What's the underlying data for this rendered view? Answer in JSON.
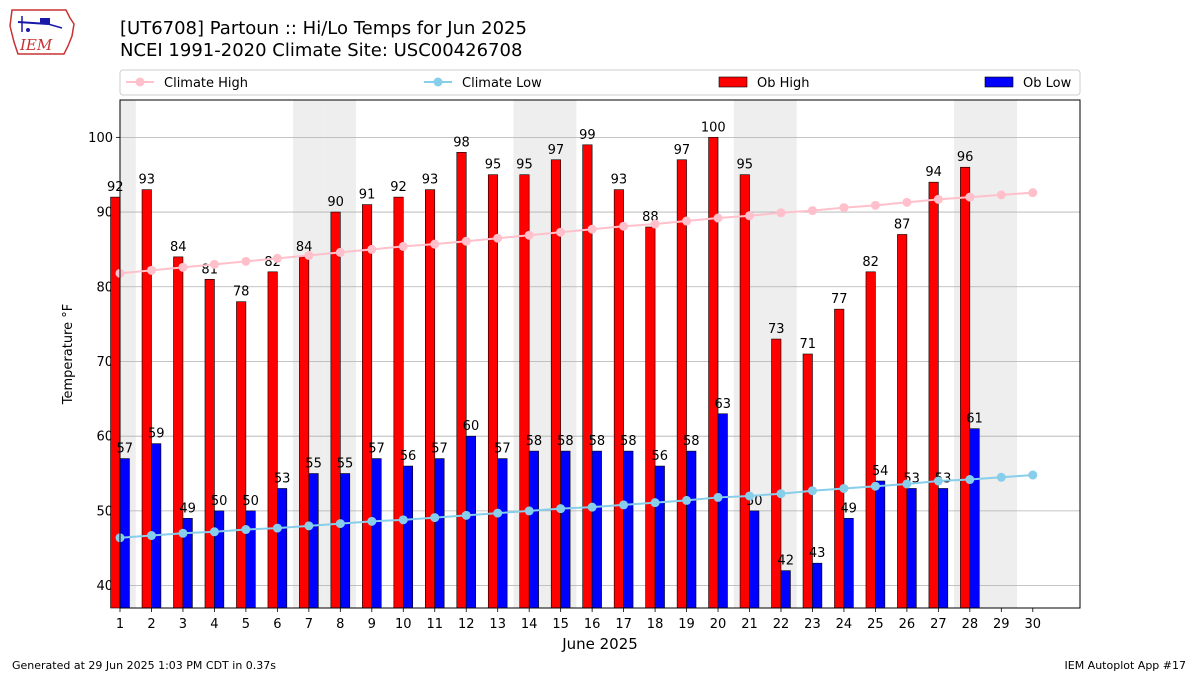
{
  "header": {
    "title_line1": "[UT6708] Partoun :: Hi/Lo Temps for Jun 2025",
    "title_line2": "NCEI 1991-2020 Climate Site: USC00426708",
    "logo_text": "IEM"
  },
  "footer": {
    "left": "Generated at 29 Jun 2025 1:03 PM CDT in 0.37s",
    "right": "IEM Autoplot App #17"
  },
  "colors": {
    "ob_high": "#ff0000",
    "ob_low": "#0000ff",
    "climate_high": "#ffc0cb",
    "climate_low": "#87ceeb",
    "weekend_shade": "#eeeeee"
  },
  "chart_data": {
    "type": "bar",
    "xlabel": "June 2025",
    "ylabel": "Temperature °F",
    "ylim": [
      37,
      105
    ],
    "yticks": [
      40,
      50,
      60,
      70,
      80,
      90,
      100
    ],
    "grid": true,
    "legend_position": "top",
    "x": [
      1,
      2,
      3,
      4,
      5,
      6,
      7,
      8,
      9,
      10,
      11,
      12,
      13,
      14,
      15,
      16,
      17,
      18,
      19,
      20,
      21,
      22,
      23,
      24,
      25,
      26,
      27,
      28,
      29,
      30
    ],
    "weekend_days": [
      1,
      7,
      8,
      14,
      15,
      21,
      22,
      28,
      29
    ],
    "series": [
      {
        "name": "Climate High",
        "kind": "line",
        "values": [
          81.8,
          82.2,
          82.6,
          83.0,
          83.4,
          83.8,
          84.2,
          84.6,
          85.0,
          85.4,
          85.7,
          86.1,
          86.5,
          86.9,
          87.3,
          87.7,
          88.1,
          88.4,
          88.8,
          89.2,
          89.5,
          89.9,
          90.2,
          90.6,
          90.9,
          91.3,
          91.7,
          92.0,
          92.3,
          92.6
        ]
      },
      {
        "name": "Climate Low",
        "kind": "line",
        "values": [
          46.4,
          46.7,
          47.0,
          47.2,
          47.5,
          47.7,
          48.0,
          48.3,
          48.6,
          48.8,
          49.1,
          49.4,
          49.7,
          50.0,
          50.3,
          50.5,
          50.8,
          51.1,
          51.4,
          51.8,
          52.0,
          52.3,
          52.7,
          53.0,
          53.3,
          53.6,
          54.0,
          54.2,
          54.5,
          54.8
        ]
      },
      {
        "name": "Ob High",
        "kind": "bar",
        "values": [
          92,
          93,
          84,
          81,
          78,
          82,
          84,
          90,
          91,
          92,
          93,
          98,
          95,
          95,
          97,
          99,
          93,
          88,
          97,
          100,
          95,
          73,
          71,
          77,
          82,
          87,
          94,
          96,
          null,
          null
        ]
      },
      {
        "name": "Ob Low",
        "kind": "bar",
        "values": [
          57,
          59,
          49,
          50,
          50,
          53,
          55,
          55,
          57,
          56,
          57,
          60,
          57,
          58,
          58,
          58,
          58,
          56,
          58,
          63,
          50,
          42,
          43,
          49,
          54,
          53,
          53,
          61,
          null,
          null
        ]
      }
    ]
  }
}
